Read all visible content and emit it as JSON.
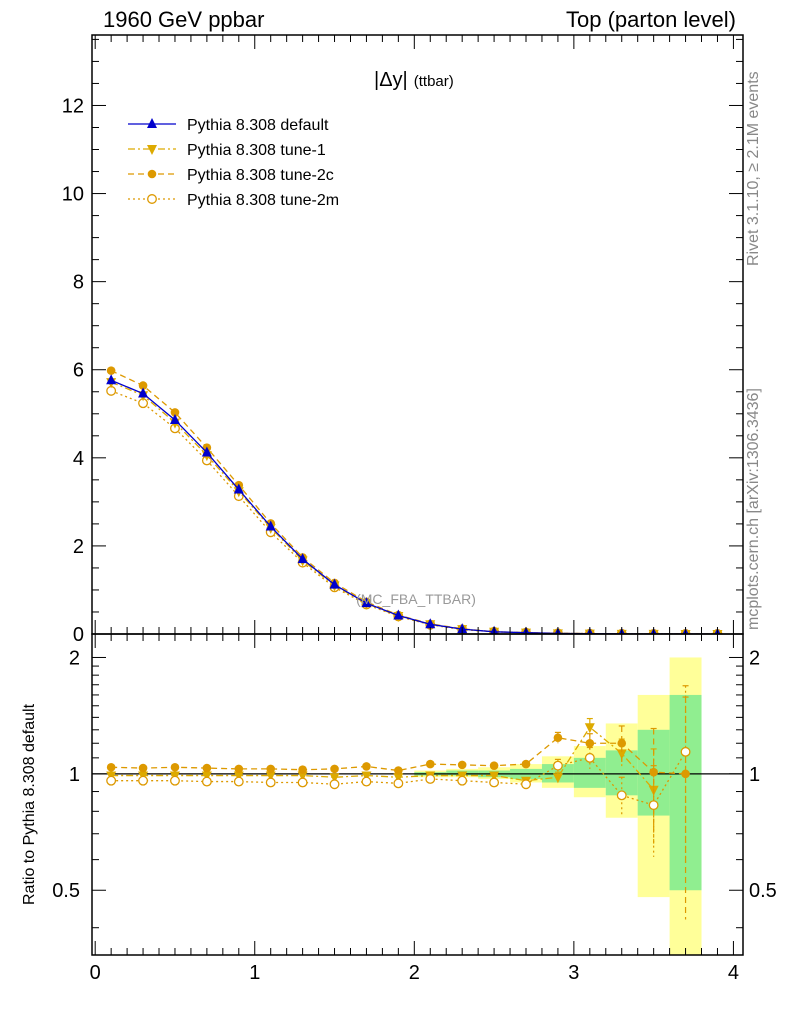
{
  "header": {
    "left": "1960 GeV ppbar",
    "right": "Top (parton level)"
  },
  "side": {
    "rivet": "Rivet 3.1.10, ≥ 2.1M events",
    "mcplots": "mcplots.cern.ch [arXiv:1306.3436]"
  },
  "chart_data": [
    {
      "type": "line",
      "panel": "main",
      "title": "|Δy| (ttbar)",
      "title_main": "|Δy|",
      "title_sub": "(ttbar)",
      "watermark": "(MC_FBA_TTBAR)",
      "xlabel": "",
      "ylabel": "",
      "xlim": [
        -0.02,
        4.06
      ],
      "ylim": [
        0,
        13.6
      ],
      "xticks": [
        0,
        1,
        2,
        3,
        4
      ],
      "xtick_labels": [
        "0",
        "1",
        "2",
        "3",
        "4"
      ],
      "yticks": [
        0,
        2,
        4,
        6,
        8,
        10,
        12
      ],
      "ytick_labels": [
        "0",
        "2",
        "4",
        "6",
        "8",
        "10",
        "12"
      ],
      "x": [
        0.1,
        0.3,
        0.5,
        0.7,
        0.9,
        1.1,
        1.3,
        1.5,
        1.7,
        1.9,
        2.1,
        2.3,
        2.5,
        2.7,
        2.9,
        3.1,
        3.3,
        3.5,
        3.7,
        3.9
      ],
      "legend_position": "top-left",
      "series": [
        {
          "name": "Pythia 8.308 default",
          "color": "#0000cc",
          "marker": "triangle-up",
          "linestyle": "solid",
          "values": [
            5.76,
            5.46,
            4.86,
            4.12,
            3.28,
            2.44,
            1.7,
            1.12,
            0.7,
            0.42,
            0.22,
            0.11,
            0.05,
            0.03,
            0.015,
            0.008,
            0.004,
            0.002,
            0.001,
            0.0
          ]
        },
        {
          "name": "Pythia 8.308 tune-1",
          "color": "#ddaa00",
          "marker": "triangle-down",
          "linestyle": "dashdot",
          "values": [
            5.72,
            5.42,
            4.8,
            4.06,
            3.24,
            2.41,
            1.67,
            1.1,
            0.69,
            0.41,
            0.22,
            0.11,
            0.05,
            0.03,
            0.015,
            0.009,
            0.004,
            0.002,
            0.001,
            0.0
          ]
        },
        {
          "name": "Pythia 8.308 tune-2c",
          "color": "#dd9900",
          "marker": "circle-filled",
          "linestyle": "dashed",
          "values": [
            5.98,
            5.64,
            5.03,
            4.23,
            3.38,
            2.51,
            1.74,
            1.16,
            0.73,
            0.43,
            0.23,
            0.12,
            0.05,
            0.03,
            0.018,
            0.009,
            0.005,
            0.002,
            0.001,
            0.0
          ]
        },
        {
          "name": "Pythia 8.308 tune-2m",
          "color": "#dd9900",
          "marker": "circle-open",
          "linestyle": "dotted",
          "values": [
            5.52,
            5.24,
            4.67,
            3.94,
            3.13,
            2.31,
            1.62,
            1.06,
            0.67,
            0.4,
            0.21,
            0.1,
            0.05,
            0.03,
            0.015,
            0.008,
            0.004,
            0.002,
            0.001,
            0.0
          ]
        }
      ]
    },
    {
      "type": "line",
      "panel": "ratio",
      "ylabel": "Ratio to Pythia 8.308 default",
      "xlim": [
        -0.02,
        4.06
      ],
      "ylim": [
        0.34,
        2.3
      ],
      "xticks": [
        0,
        1,
        2,
        3,
        4
      ],
      "xtick_labels": [
        "0",
        "1",
        "2",
        "3",
        "4"
      ],
      "yticks": [
        0.5,
        1,
        2
      ],
      "ytick_labels": [
        "0.5",
        "1",
        "2"
      ],
      "reference": 1,
      "x": [
        0.1,
        0.3,
        0.5,
        0.7,
        0.9,
        1.1,
        1.3,
        1.5,
        1.7,
        1.9,
        2.1,
        2.3,
        2.5,
        2.7,
        2.9,
        3.1,
        3.3,
        3.5,
        3.7
      ],
      "bands": {
        "bin_edges": [
          2.0,
          2.2,
          2.4,
          2.6,
          2.8,
          3.0,
          3.2,
          3.4,
          3.6,
          3.8
        ],
        "yellow_low": [
          0.98,
          0.98,
          0.97,
          0.95,
          0.92,
          0.87,
          0.77,
          0.48,
          0.34
        ],
        "yellow_high": [
          1.02,
          1.03,
          1.04,
          1.06,
          1.11,
          1.18,
          1.35,
          1.6,
          2.0
        ],
        "green_low": [
          0.99,
          0.99,
          0.98,
          0.97,
          0.95,
          0.92,
          0.88,
          0.78,
          0.5
        ],
        "green_high": [
          1.01,
          1.02,
          1.02,
          1.03,
          1.06,
          1.1,
          1.15,
          1.3,
          1.6
        ],
        "yellow_color": "#ffff99",
        "green_color": "#90ee90"
      },
      "series": [
        {
          "name": "Pythia 8.308 tune-1",
          "color": "#ddaa00",
          "marker": "triangle-down",
          "linestyle": "dashdot",
          "values": [
            0.99,
            0.99,
            0.99,
            0.99,
            0.99,
            0.99,
            0.99,
            0.98,
            0.99,
            0.98,
            0.99,
            0.99,
            0.99,
            0.96,
            0.98,
            1.32,
            1.13,
            0.91,
            null
          ],
          "err": [
            0,
            0,
            0,
            0,
            0,
            0,
            0,
            0,
            0,
            0,
            0,
            0,
            0,
            0,
            0.03,
            0.07,
            0.1,
            0.25,
            0
          ]
        },
        {
          "name": "Pythia 8.308 tune-2c",
          "color": "#dd9900",
          "marker": "circle-filled",
          "linestyle": "dashed",
          "values": [
            1.04,
            1.035,
            1.04,
            1.035,
            1.03,
            1.03,
            1.025,
            1.03,
            1.045,
            1.02,
            1.06,
            1.055,
            1.05,
            1.06,
            1.24,
            1.2,
            1.2,
            1.01,
            1.0
          ],
          "err": [
            0,
            0,
            0,
            0,
            0,
            0,
            0,
            0,
            0,
            0,
            0,
            0,
            0,
            0,
            0.04,
            0.07,
            0.13,
            0.3,
            0.58
          ]
        },
        {
          "name": "Pythia 8.308 tune-2m",
          "color": "#dd9900",
          "marker": "circle-open",
          "linestyle": "dotted",
          "values": [
            0.96,
            0.96,
            0.96,
            0.955,
            0.955,
            0.95,
            0.95,
            0.94,
            0.955,
            0.945,
            0.97,
            0.96,
            0.95,
            0.94,
            1.05,
            1.1,
            0.88,
            0.83,
            1.14
          ],
          "err": [
            0,
            0,
            0,
            0,
            0,
            0,
            0,
            0,
            0,
            0,
            0,
            0,
            0,
            0,
            0.04,
            0.07,
            0.1,
            0.22,
            0.55
          ]
        }
      ]
    }
  ]
}
